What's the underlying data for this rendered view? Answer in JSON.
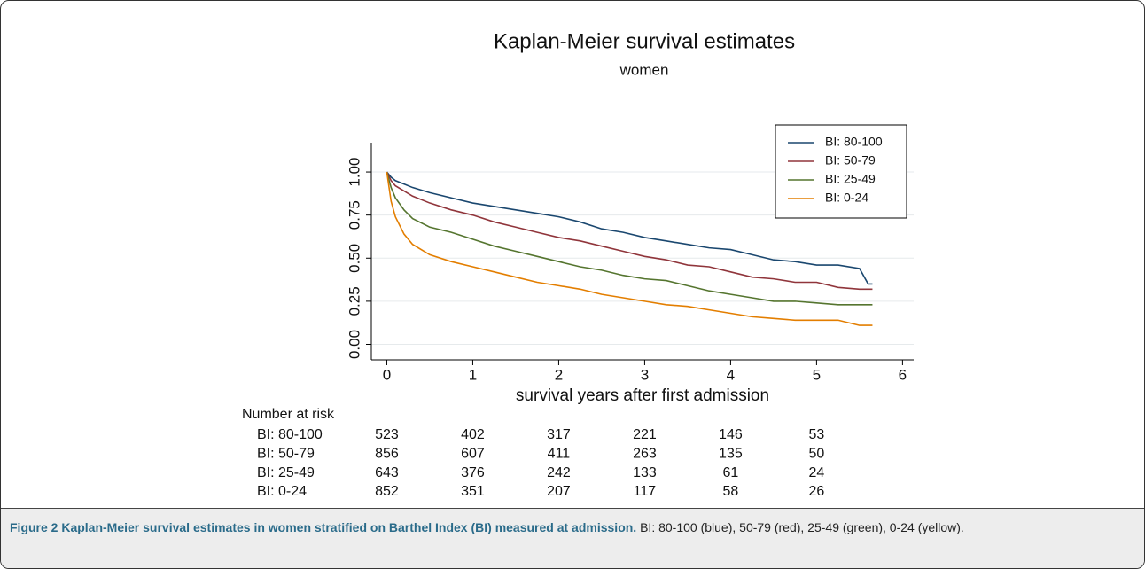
{
  "chart_data": {
    "type": "line",
    "title": "Kaplan-Meier survival estimates",
    "subtitle": "women",
    "x_label": "survival years after first admission",
    "x": [
      0,
      0.05,
      0.1,
      0.2,
      0.3,
      0.5,
      0.75,
      1,
      1.25,
      1.5,
      1.75,
      2,
      2.25,
      2.5,
      2.75,
      3,
      3.25,
      3.5,
      3.75,
      4,
      4.25,
      4.5,
      4.75,
      5,
      5.25,
      5.5,
      5.6,
      5.65
    ],
    "series": [
      {
        "name": "BI: 80-100",
        "color": "#1a476f",
        "values": [
          1,
          0.97,
          0.95,
          0.93,
          0.91,
          0.88,
          0.85,
          0.82,
          0.8,
          0.78,
          0.76,
          0.74,
          0.71,
          0.67,
          0.65,
          0.62,
          0.6,
          0.58,
          0.56,
          0.55,
          0.52,
          0.49,
          0.48,
          0.46,
          0.46,
          0.44,
          0.35,
          0.35
        ]
      },
      {
        "name": "BI: 50-79",
        "color": "#90353b",
        "values": [
          1,
          0.95,
          0.92,
          0.89,
          0.86,
          0.82,
          0.78,
          0.75,
          0.71,
          0.68,
          0.65,
          0.62,
          0.6,
          0.57,
          0.54,
          0.51,
          0.49,
          0.46,
          0.45,
          0.42,
          0.39,
          0.38,
          0.36,
          0.36,
          0.33,
          0.32,
          0.32,
          0.32
        ]
      },
      {
        "name": "BI: 25-49",
        "color": "#55752f",
        "values": [
          1,
          0.91,
          0.85,
          0.78,
          0.73,
          0.68,
          0.65,
          0.61,
          0.57,
          0.54,
          0.51,
          0.48,
          0.45,
          0.43,
          0.4,
          0.38,
          0.37,
          0.34,
          0.31,
          0.29,
          0.27,
          0.25,
          0.25,
          0.24,
          0.23,
          0.23,
          0.23,
          0.23
        ]
      },
      {
        "name": "BI: 0-24",
        "color": "#e37e00",
        "values": [
          1,
          0.83,
          0.74,
          0.64,
          0.58,
          0.52,
          0.48,
          0.45,
          0.42,
          0.39,
          0.36,
          0.34,
          0.32,
          0.29,
          0.27,
          0.25,
          0.23,
          0.22,
          0.2,
          0.18,
          0.16,
          0.15,
          0.14,
          0.14,
          0.14,
          0.11,
          0.11,
          0.11
        ]
      }
    ],
    "xlim": [
      -0.18,
      6.13
    ],
    "xticks": [
      0,
      1,
      2,
      3,
      4,
      5,
      6
    ],
    "ylim": [
      -0.09,
      1.17
    ],
    "yticks": [
      {
        "value": 0,
        "label": "0.00"
      },
      0.25,
      {
        "value": 0.5,
        "label": "0.50"
      },
      {
        "value": 0.75,
        "label": "0.75"
      },
      {
        "value": 1,
        "label": "1.00"
      }
    ],
    "grid": true,
    "legend": "top-right"
  },
  "risk_table": {
    "title": "Number at risk",
    "rows": [
      {
        "label": "BI: 80-100",
        "counts": [
          523,
          402,
          317,
          221,
          146,
          53
        ]
      },
      {
        "label": "BI: 50-79",
        "counts": [
          856,
          607,
          411,
          263,
          135,
          50
        ]
      },
      {
        "label": "BI: 25-49",
        "counts": [
          643,
          376,
          242,
          133,
          61,
          24
        ]
      },
      {
        "label": "BI: 0-24",
        "counts": [
          852,
          351,
          207,
          117,
          58,
          26
        ]
      }
    ]
  },
  "caption": {
    "label": "Figure 2 Kaplan-Meier survival estimates in women stratified on Barthel Index (BI) measured at admission.",
    "text": " BI: 80-100 (blue), 50-79 (red), 25-49 (green), 0-24 (yellow)."
  }
}
